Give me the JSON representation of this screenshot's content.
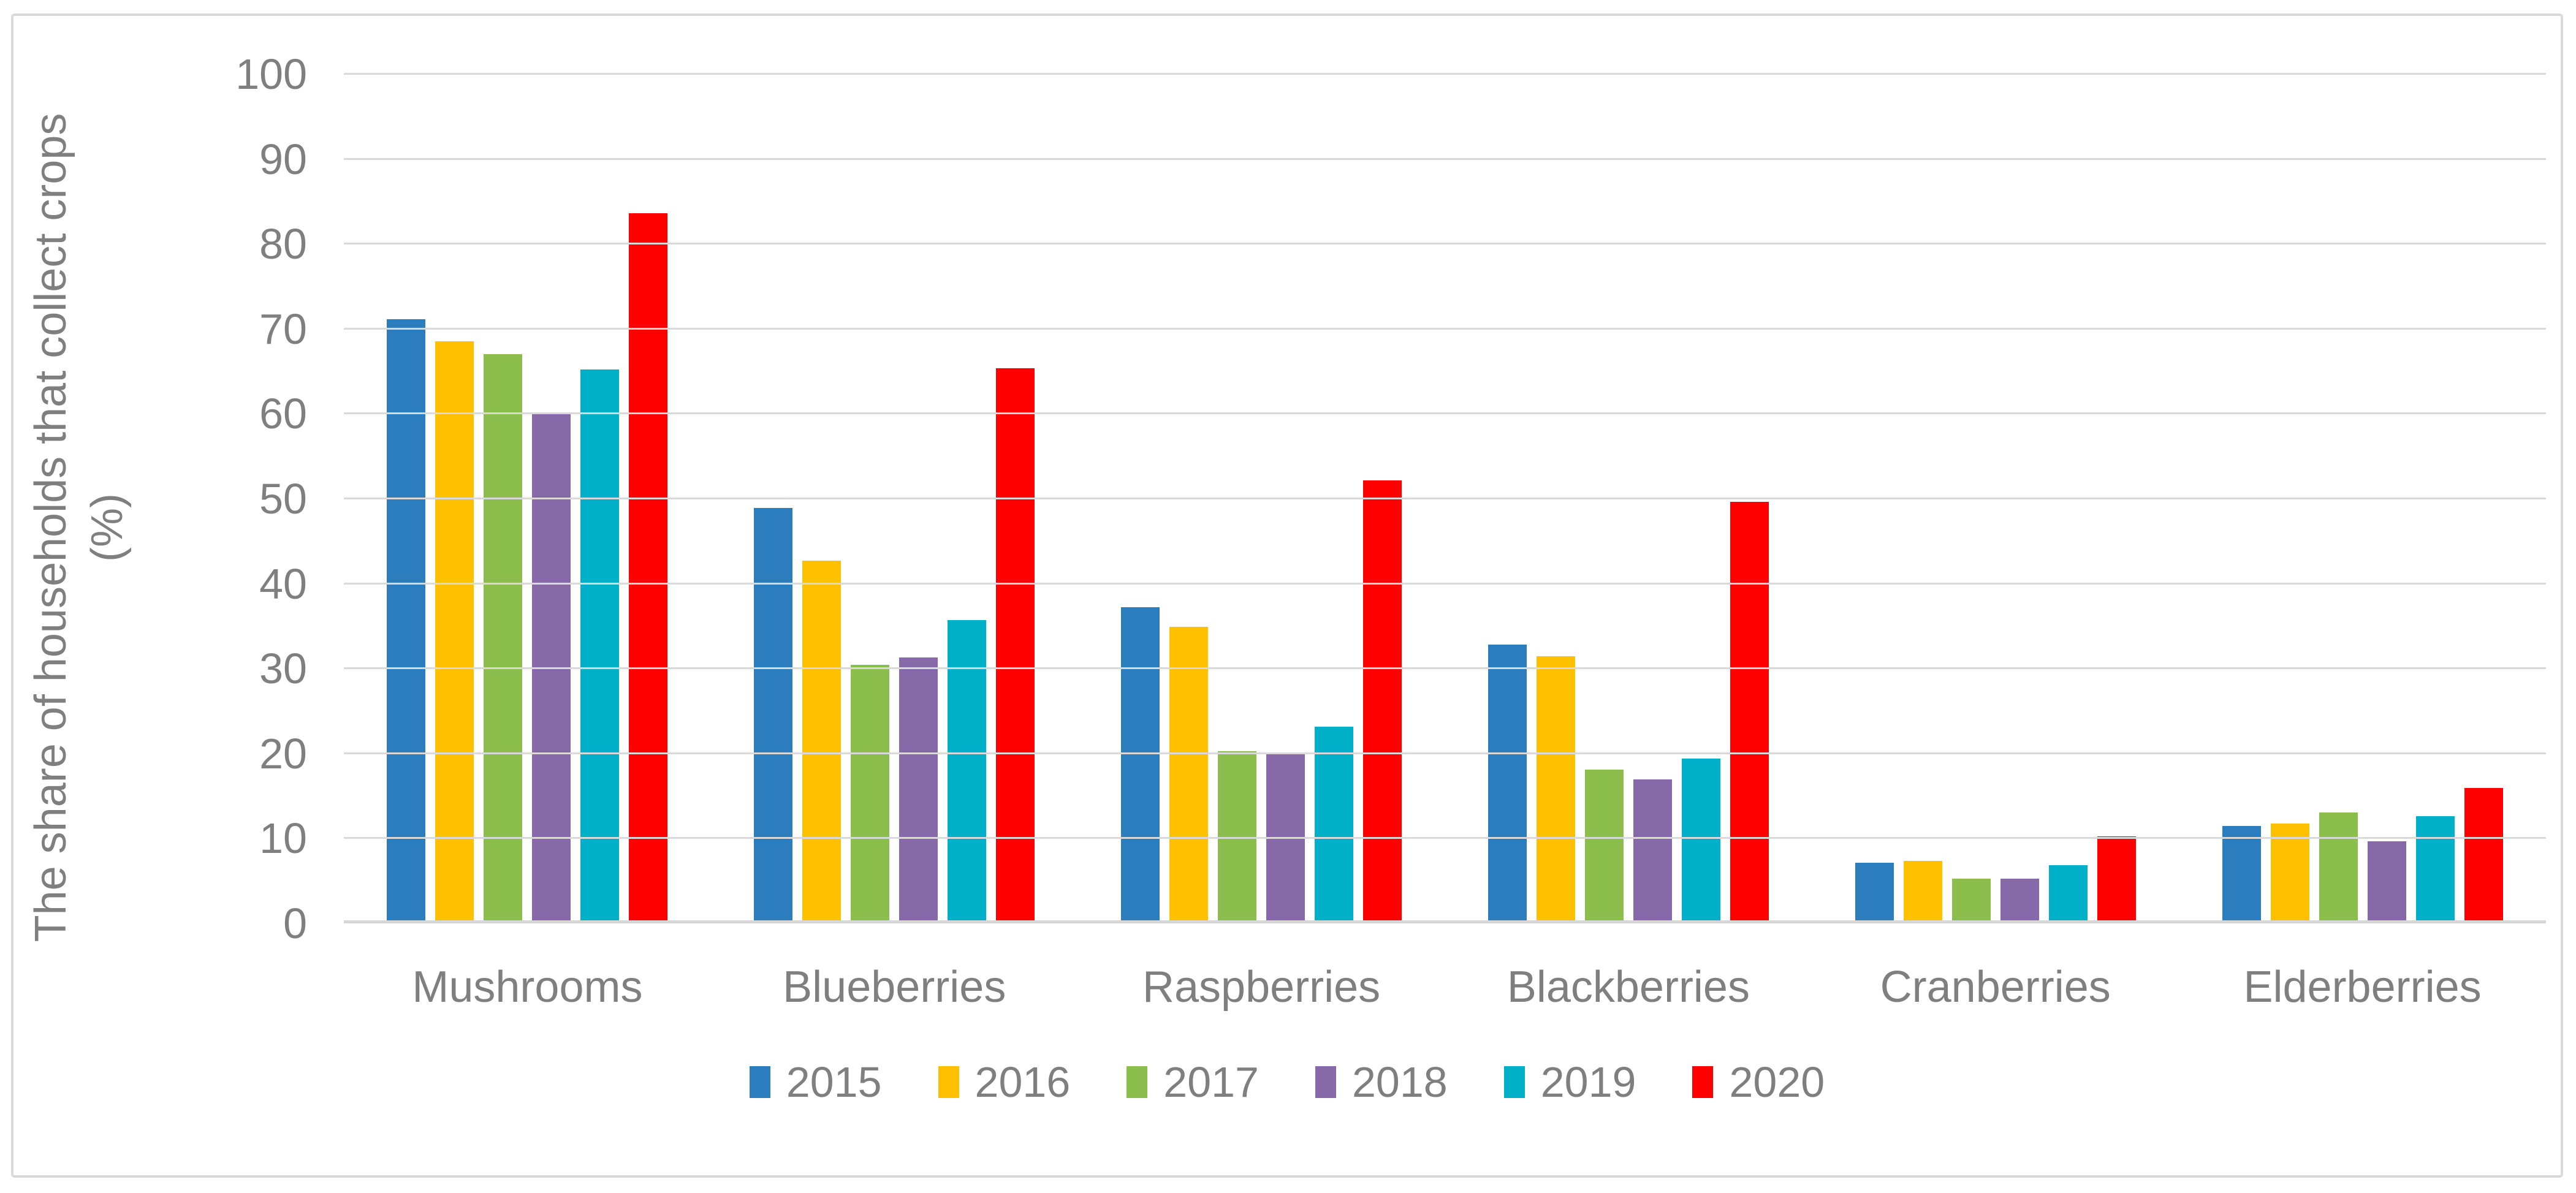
{
  "chart_data": {
    "type": "bar",
    "title": "",
    "ylabel_line1": "The share of households that collect crops",
    "ylabel_line2": "(%)",
    "xlabel": "",
    "categories": [
      "Mushrooms",
      "Blueberries",
      "Raspberries",
      "Blackberries",
      "Cranberries",
      "Elderberries"
    ],
    "series": [
      {
        "name": "2015",
        "color": "#2b7dbe",
        "values": [
          71.0,
          48.8,
          37.1,
          32.7,
          7.0,
          11.3
        ]
      },
      {
        "name": "2016",
        "color": "#ffc000",
        "values": [
          68.4,
          42.6,
          34.8,
          31.3,
          7.2,
          11.6
        ]
      },
      {
        "name": "2017",
        "color": "#8cbe4d",
        "values": [
          66.9,
          30.3,
          20.1,
          18.0,
          5.1,
          12.9
        ]
      },
      {
        "name": "2018",
        "color": "#8769aa",
        "values": [
          60.0,
          31.2,
          19.8,
          16.8,
          5.1,
          9.5
        ]
      },
      {
        "name": "2019",
        "color": "#00afc8",
        "values": [
          65.1,
          35.6,
          23.0,
          19.3,
          6.7,
          12.5
        ]
      },
      {
        "name": "2020",
        "color": "#ff0000",
        "values": [
          83.5,
          65.2,
          52.0,
          49.5,
          10.1,
          15.8
        ]
      }
    ],
    "ylim": [
      0,
      100
    ],
    "yticks": [
      0,
      10,
      20,
      30,
      40,
      50,
      60,
      70,
      80,
      90,
      100
    ],
    "grid": true,
    "legend_position": "bottom",
    "gridline_color": "#d9d9d9",
    "text_color": "#7f7f7f"
  }
}
